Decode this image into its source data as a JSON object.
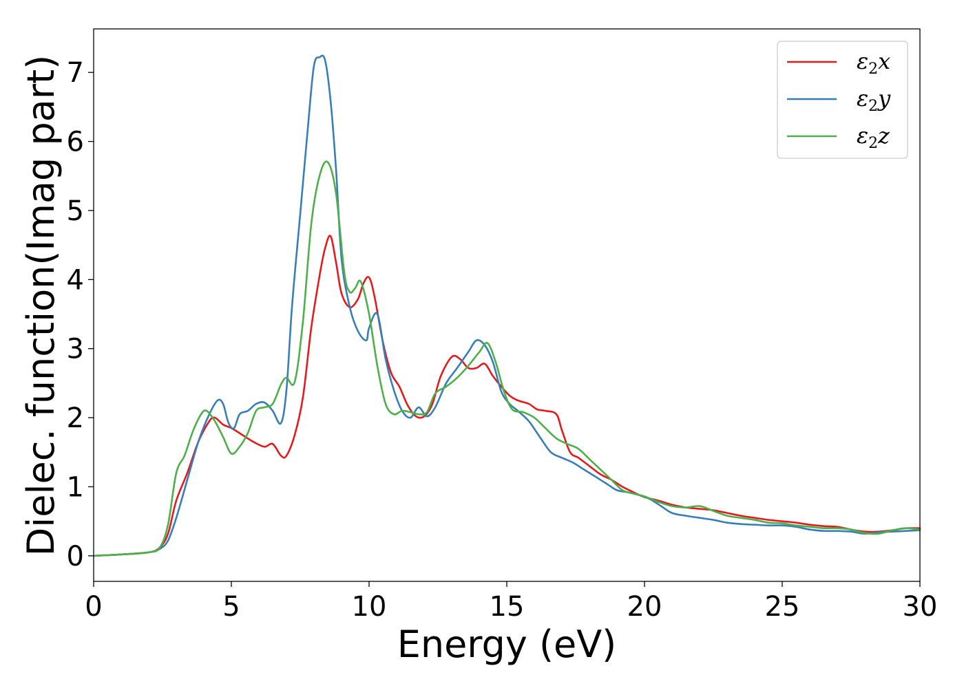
{
  "chart_data": {
    "type": "line",
    "title": "",
    "xlabel": "Energy (eV)",
    "ylabel": "Dielec. function(Imag part)",
    "xlim": [
      0,
      30
    ],
    "ylim": [
      -0.37,
      7.63
    ],
    "xticks": [
      0,
      5,
      10,
      15,
      20,
      25,
      30
    ],
    "yticks": [
      0,
      1,
      2,
      3,
      4,
      5,
      6,
      7
    ],
    "grid": false,
    "legend_position": "top-right",
    "colors": {
      "x": "#e41a1c",
      "y": "#377eb8",
      "z": "#4daf4a"
    },
    "series": [
      {
        "name": "ε₂x",
        "legend_main": "ε",
        "legend_sub": "2",
        "legend_suffix": "x",
        "color": "#e41a1c",
        "x": [
          0,
          1,
          2,
          2.4,
          2.7,
          3.0,
          3.4,
          3.8,
          4.2,
          4.4,
          4.7,
          5.0,
          5.4,
          5.8,
          6.2,
          6.5,
          6.8,
          7.0,
          7.3,
          7.6,
          7.9,
          8.2,
          8.4,
          8.6,
          8.8,
          9.0,
          9.3,
          9.6,
          9.8,
          10.0,
          10.2,
          10.5,
          10.8,
          11.1,
          11.4,
          11.7,
          12.0,
          12.3,
          12.6,
          13.0,
          13.3,
          13.6,
          13.9,
          14.2,
          14.5,
          14.8,
          15.1,
          15.4,
          15.8,
          16.1,
          16.4,
          16.8,
          17.0,
          17.3,
          17.6,
          18.0,
          18.4,
          18.8,
          19.2,
          19.6,
          20.0,
          20.5,
          21,
          21.5,
          22,
          22.5,
          23,
          23.5,
          24,
          24.5,
          25,
          25.5,
          26,
          26.5,
          27,
          27.5,
          28,
          28.5,
          29,
          29.5,
          30
        ],
        "y": [
          0,
          0.02,
          0.05,
          0.12,
          0.32,
          0.8,
          1.2,
          1.65,
          1.95,
          2.0,
          1.9,
          1.85,
          1.75,
          1.65,
          1.58,
          1.62,
          1.45,
          1.45,
          1.75,
          2.3,
          3.3,
          4.05,
          4.45,
          4.63,
          4.25,
          3.8,
          3.6,
          3.72,
          3.95,
          4.03,
          3.75,
          3.1,
          2.65,
          2.45,
          2.18,
          2.02,
          2.02,
          2.2,
          2.6,
          2.88,
          2.85,
          2.72,
          2.72,
          2.78,
          2.6,
          2.45,
          2.32,
          2.25,
          2.2,
          2.12,
          2.1,
          2.05,
          1.82,
          1.5,
          1.42,
          1.3,
          1.18,
          1.1,
          1.0,
          0.92,
          0.85,
          0.8,
          0.74,
          0.7,
          0.68,
          0.66,
          0.62,
          0.58,
          0.55,
          0.52,
          0.5,
          0.48,
          0.45,
          0.43,
          0.42,
          0.38,
          0.35,
          0.35,
          0.37,
          0.4,
          0.4
        ]
      },
      {
        "name": "ε₂y",
        "legend_main": "ε",
        "legend_sub": "2",
        "legend_suffix": "y",
        "color": "#377eb8",
        "x": [
          0,
          1,
          2,
          2.4,
          2.7,
          3.0,
          3.4,
          3.8,
          4.2,
          4.5,
          4.7,
          4.9,
          5.1,
          5.3,
          5.6,
          5.9,
          6.2,
          6.5,
          6.8,
          7.0,
          7.2,
          7.5,
          7.8,
          8.0,
          8.2,
          8.4,
          8.6,
          8.8,
          9.0,
          9.3,
          9.6,
          9.9,
          10.0,
          10.3,
          10.6,
          10.9,
          11.2,
          11.5,
          11.8,
          12.1,
          12.4,
          12.8,
          13.2,
          13.6,
          13.9,
          14.2,
          14.5,
          14.8,
          15.1,
          15.4,
          15.8,
          16.2,
          16.6,
          17.0,
          17.4,
          17.8,
          18.2,
          18.6,
          19.0,
          19.4,
          19.8,
          20.2,
          20.6,
          21.0,
          21.5,
          22,
          22.5,
          23,
          23.5,
          24,
          24.5,
          25,
          25.5,
          26,
          26.5,
          27,
          27.5,
          28,
          28.5,
          29,
          29.5,
          30
        ],
        "y": [
          0,
          0.02,
          0.05,
          0.1,
          0.22,
          0.55,
          1.1,
          1.65,
          2.05,
          2.25,
          2.2,
          1.92,
          1.85,
          2.05,
          2.1,
          2.2,
          2.22,
          2.1,
          1.92,
          2.4,
          3.6,
          4.95,
          6.3,
          7.1,
          7.22,
          7.18,
          6.6,
          5.6,
          4.3,
          3.6,
          3.25,
          3.12,
          3.3,
          3.5,
          2.85,
          2.4,
          2.1,
          2.0,
          2.15,
          2.02,
          2.15,
          2.5,
          2.72,
          2.95,
          3.12,
          3.05,
          2.8,
          2.38,
          2.2,
          2.1,
          1.95,
          1.72,
          1.5,
          1.42,
          1.35,
          1.25,
          1.15,
          1.05,
          0.95,
          0.92,
          0.88,
          0.82,
          0.72,
          0.62,
          0.58,
          0.55,
          0.52,
          0.48,
          0.46,
          0.45,
          0.44,
          0.44,
          0.42,
          0.38,
          0.36,
          0.36,
          0.35,
          0.32,
          0.34,
          0.35,
          0.36,
          0.37
        ]
      },
      {
        "name": "ε₂z",
        "legend_main": "ε",
        "legend_sub": "2",
        "legend_suffix": "z",
        "color": "#4daf4a",
        "x": [
          0,
          1,
          2,
          2.4,
          2.7,
          3.0,
          3.3,
          3.6,
          3.9,
          4.1,
          4.4,
          4.7,
          5.0,
          5.3,
          5.6,
          5.9,
          6.2,
          6.5,
          6.8,
          7.0,
          7.3,
          7.6,
          7.9,
          8.2,
          8.5,
          8.8,
          9.1,
          9.3,
          9.5,
          9.7,
          10.0,
          10.3,
          10.6,
          10.9,
          11.2,
          11.5,
          11.8,
          12.1,
          12.4,
          12.8,
          13.2,
          13.6,
          14.0,
          14.3,
          14.6,
          14.9,
          15.2,
          15.6,
          16.0,
          16.4,
          16.8,
          17.2,
          17.6,
          18.0,
          18.4,
          18.8,
          19.2,
          19.6,
          20.0,
          20.5,
          21.0,
          21.5,
          22,
          22.5,
          23,
          23.5,
          24,
          24.5,
          25,
          25.5,
          26,
          26.5,
          27,
          27.5,
          28,
          28.5,
          29,
          29.5,
          30
        ],
        "y": [
          0,
          0.02,
          0.05,
          0.12,
          0.45,
          1.2,
          1.45,
          1.8,
          2.05,
          2.1,
          1.95,
          1.72,
          1.48,
          1.58,
          1.78,
          2.1,
          2.15,
          2.2,
          2.48,
          2.58,
          2.52,
          3.4,
          4.8,
          5.5,
          5.7,
          5.25,
          4.1,
          3.82,
          3.88,
          3.97,
          3.5,
          2.75,
          2.2,
          2.05,
          2.1,
          2.08,
          2.05,
          2.08,
          2.35,
          2.45,
          2.58,
          2.75,
          2.95,
          3.08,
          2.8,
          2.38,
          2.12,
          2.08,
          2.0,
          1.85,
          1.7,
          1.62,
          1.55,
          1.4,
          1.25,
          1.1,
          0.95,
          0.9,
          0.86,
          0.78,
          0.72,
          0.7,
          0.72,
          0.65,
          0.58,
          0.55,
          0.52,
          0.48,
          0.47,
          0.44,
          0.42,
          0.4,
          0.4,
          0.38,
          0.33,
          0.32,
          0.37,
          0.4,
          0.38
        ]
      }
    ]
  }
}
